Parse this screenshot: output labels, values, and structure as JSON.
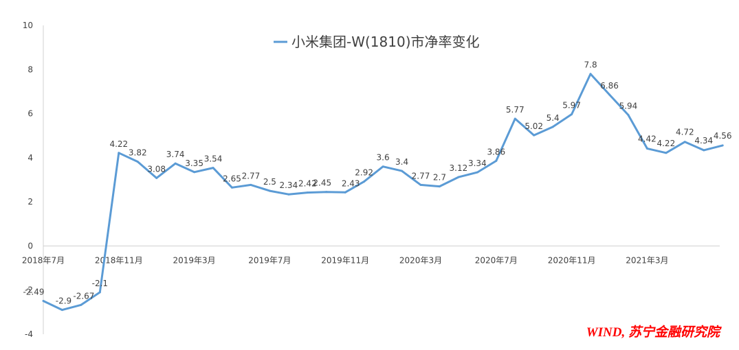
{
  "chart_data": {
    "type": "line",
    "title": "小米集团-W(1810)市净率变化",
    "xlabel": "",
    "ylabel": "",
    "ylim": [
      -4,
      10
    ],
    "yticks": [
      -4,
      -2,
      0,
      2,
      4,
      6,
      8,
      10
    ],
    "x_tick_labels": [
      "2018年7月",
      "2018年11月",
      "2019年3月",
      "2019年7月",
      "2019年11月",
      "2020年3月",
      "2020年7月",
      "2020年11月",
      "2021年3月"
    ],
    "series": [
      {
        "name": "小米集团-W(1810)市净率变化",
        "color": "#5b9bd5",
        "values": [
          -2.49,
          -2.9,
          -2.67,
          -2.1,
          4.22,
          3.82,
          3.08,
          3.74,
          3.35,
          3.54,
          2.65,
          2.77,
          2.5,
          2.34,
          2.42,
          2.45,
          2.43,
          2.92,
          3.6,
          3.4,
          2.77,
          2.7,
          3.12,
          3.34,
          3.86,
          5.77,
          5.02,
          5.4,
          5.97,
          7.8,
          6.86,
          5.94,
          4.42,
          4.22,
          4.72,
          4.34,
          4.56
        ],
        "labels": [
          "-2.49",
          "-2.9",
          "-2.67",
          "-2.1",
          "4.22",
          "3.82",
          "3.08",
          "3.74",
          "3.35",
          "3.54",
          "2.65",
          "2.77",
          "2.5",
          "2.34",
          "2.42",
          "2.45",
          "2.43",
          "2.92",
          "3.6",
          "3.4",
          "2.77",
          "2.7",
          "3.12",
          "3.34",
          "3.86",
          "5.77",
          "5.02",
          "5.4",
          "5.97",
          "7.8",
          "6.86",
          "5.94",
          "4.42",
          "4.22",
          "4.72",
          "4.34",
          "4.56"
        ]
      }
    ],
    "legend": "top-center",
    "grid": false
  },
  "source_note": "WIND, 苏宁金融研究院"
}
